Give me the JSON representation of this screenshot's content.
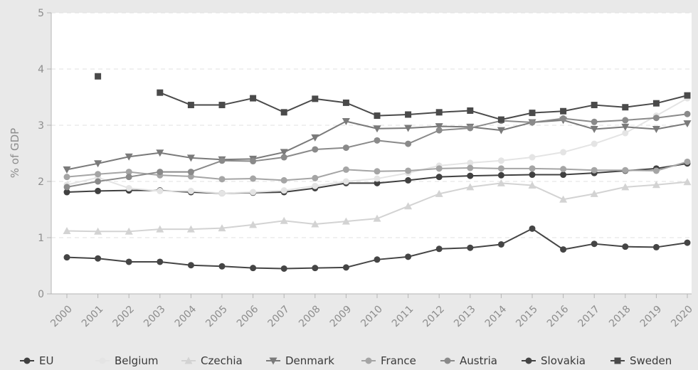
{
  "chart_data": {
    "type": "line",
    "ylabel": "% of GDP",
    "xlabel": "",
    "ylim": [
      0,
      5
    ],
    "yticks": [
      "0",
      "1",
      "2",
      "3",
      "4",
      "5"
    ],
    "categories": [
      "2000",
      "2001",
      "2002",
      "2003",
      "2004",
      "2005",
      "2006",
      "2007",
      "2008",
      "2009",
      "2010",
      "2011",
      "2012",
      "2013",
      "2014",
      "2015",
      "2016",
      "2017",
      "2018",
      "2019",
      "2020"
    ],
    "grid": true,
    "legend_position": "bottom",
    "series": [
      {
        "name": "EU",
        "marker": "circle",
        "color": "#404040",
        "values": [
          1.81,
          1.83,
          1.84,
          1.84,
          1.81,
          1.79,
          1.8,
          1.81,
          1.88,
          1.97,
          1.97,
          2.02,
          2.08,
          2.1,
          2.11,
          2.12,
          2.12,
          2.15,
          2.19,
          2.23,
          2.32
        ]
      },
      {
        "name": "Belgium",
        "marker": "circle",
        "color": "#e4e4e4",
        "values": [
          1.94,
          2.07,
          1.88,
          1.83,
          1.83,
          1.79,
          1.81,
          1.84,
          1.92,
          2.0,
          2.05,
          2.15,
          2.28,
          2.33,
          2.37,
          2.43,
          2.52,
          2.67,
          2.86,
          3.17,
          3.48
        ]
      },
      {
        "name": "Czechia",
        "marker": "triangle-up",
        "color": "#d3d3d3",
        "values": [
          1.12,
          1.11,
          1.11,
          1.15,
          1.15,
          1.17,
          1.23,
          1.3,
          1.24,
          1.29,
          1.34,
          1.56,
          1.78,
          1.9,
          1.97,
          1.93,
          1.68,
          1.78,
          1.9,
          1.94,
          1.99
        ]
      },
      {
        "name": "Denmark",
        "marker": "triangle-down",
        "color": "#7a7a7a",
        "values": [
          2.21,
          2.32,
          2.44,
          2.51,
          2.42,
          2.39,
          2.4,
          2.52,
          2.78,
          3.07,
          2.94,
          2.95,
          2.98,
          2.97,
          2.91,
          3.05,
          3.09,
          2.93,
          2.97,
          2.93,
          3.03
        ]
      },
      {
        "name": "France",
        "marker": "circle",
        "color": "#a5a5a5",
        "values": [
          2.08,
          2.13,
          2.17,
          2.11,
          2.09,
          2.04,
          2.05,
          2.02,
          2.06,
          2.21,
          2.18,
          2.19,
          2.23,
          2.24,
          2.23,
          2.23,
          2.22,
          2.2,
          2.2,
          2.19,
          2.35
        ]
      },
      {
        "name": "Austria",
        "marker": "circle",
        "color": "#8a8a8a",
        "values": [
          1.9,
          2.0,
          2.08,
          2.17,
          2.17,
          2.37,
          2.36,
          2.43,
          2.57,
          2.6,
          2.73,
          2.67,
          2.91,
          2.95,
          3.08,
          3.05,
          3.12,
          3.06,
          3.09,
          3.13,
          3.2
        ]
      },
      {
        "name": "Slovakia",
        "marker": "circle",
        "color": "#454545",
        "values": [
          0.65,
          0.63,
          0.57,
          0.57,
          0.51,
          0.49,
          0.46,
          0.45,
          0.46,
          0.47,
          0.61,
          0.66,
          0.8,
          0.82,
          0.88,
          1.16,
          0.79,
          0.89,
          0.84,
          0.83,
          0.91
        ]
      },
      {
        "name": "Sweden",
        "marker": "square",
        "color": "#4a4a4a",
        "values": [
          null,
          3.87,
          null,
          3.58,
          3.36,
          3.36,
          3.48,
          3.23,
          3.47,
          3.4,
          3.17,
          3.19,
          3.23,
          3.26,
          3.1,
          3.22,
          3.25,
          3.36,
          3.32,
          3.39,
          3.53
        ]
      }
    ]
  }
}
